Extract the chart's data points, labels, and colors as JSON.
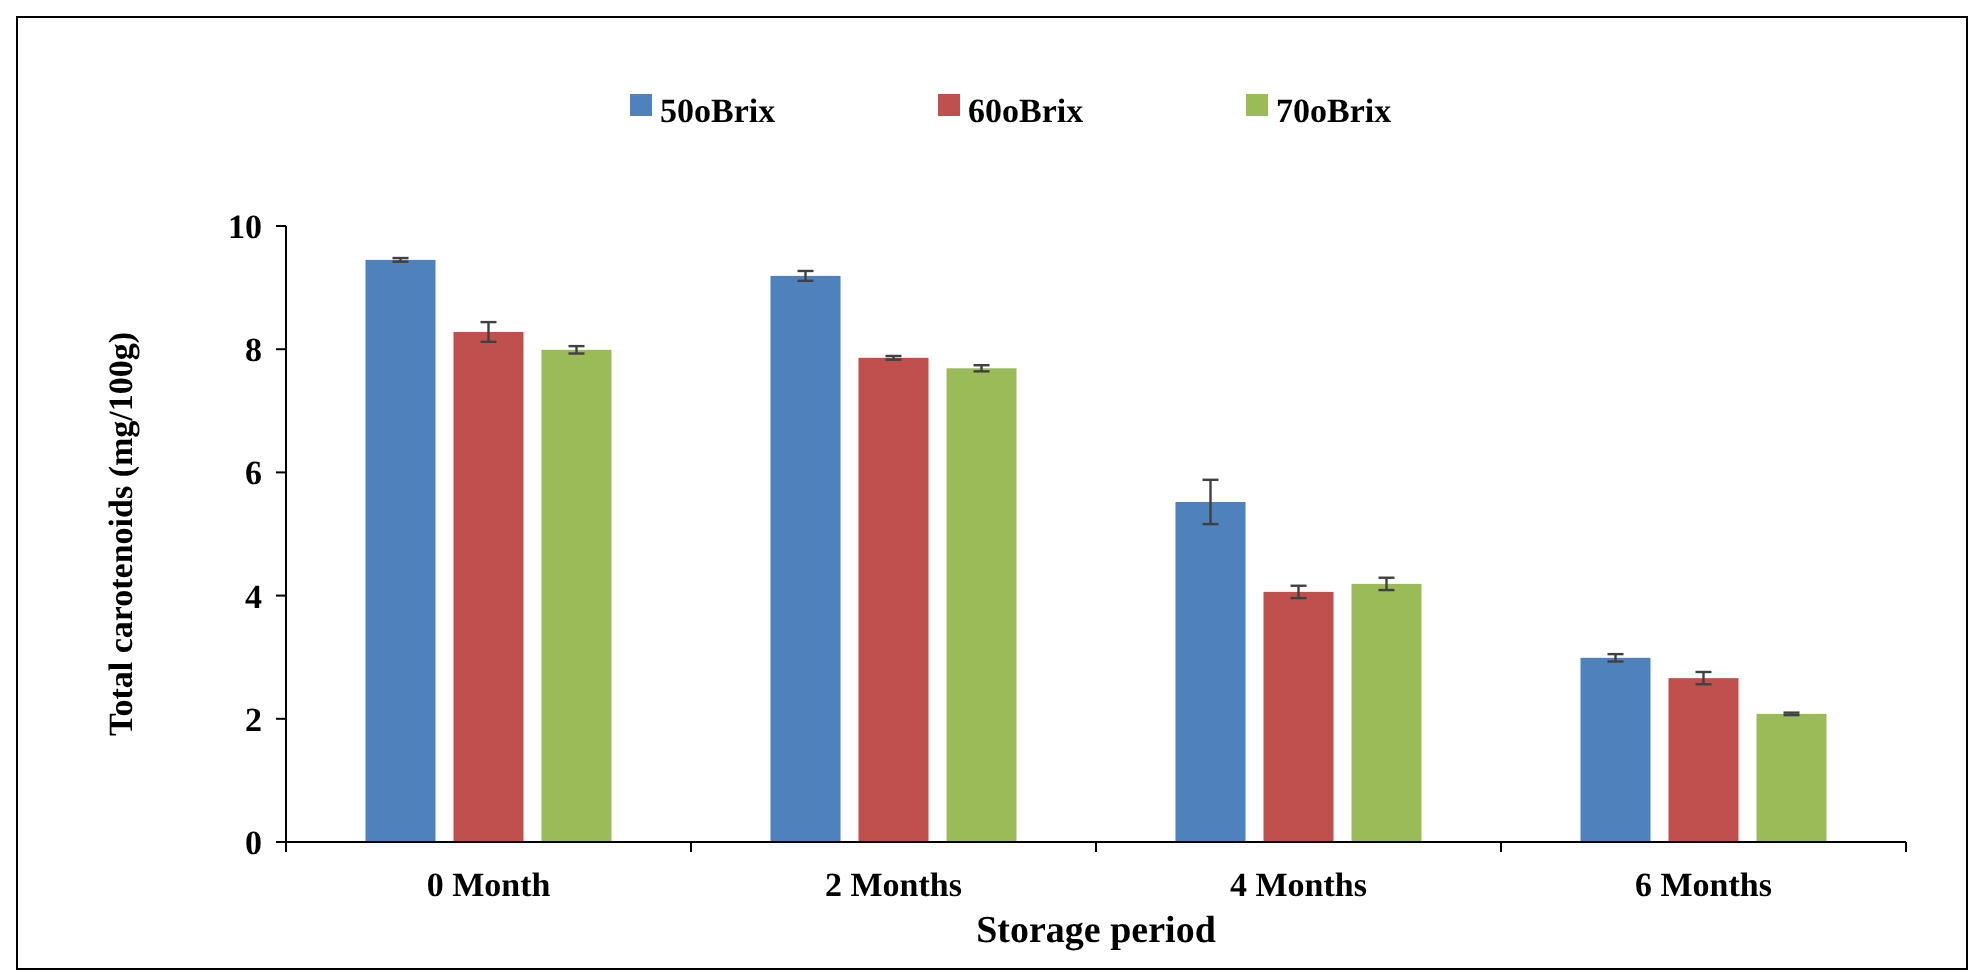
{
  "chart_data": {
    "type": "bar",
    "xlabel": "Storage period",
    "ylabel": "Total carotenoids (mg/100g)",
    "categories": [
      "0 Month",
      "2 Months",
      "4 Months",
      "6 Months"
    ],
    "series": [
      {
        "name": "50oBrix",
        "color": "#4f81bd",
        "values": [
          9.45,
          9.19,
          5.52,
          2.99
        ],
        "errors": [
          0.03,
          0.08,
          0.36,
          0.06
        ]
      },
      {
        "name": "60oBrix",
        "color": "#c0504d",
        "values": [
          8.28,
          7.86,
          4.06,
          2.66
        ],
        "errors": [
          0.16,
          0.03,
          0.1,
          0.1
        ]
      },
      {
        "name": "70oBrix",
        "color": "#9bbb59",
        "values": [
          7.99,
          7.69,
          4.19,
          2.08
        ],
        "errors": [
          0.06,
          0.05,
          0.1,
          0.02
        ]
      }
    ],
    "ylim": [
      0,
      10
    ],
    "yticks": [
      0,
      2,
      4,
      6,
      8,
      10
    ],
    "grid": false,
    "legend": "top"
  }
}
